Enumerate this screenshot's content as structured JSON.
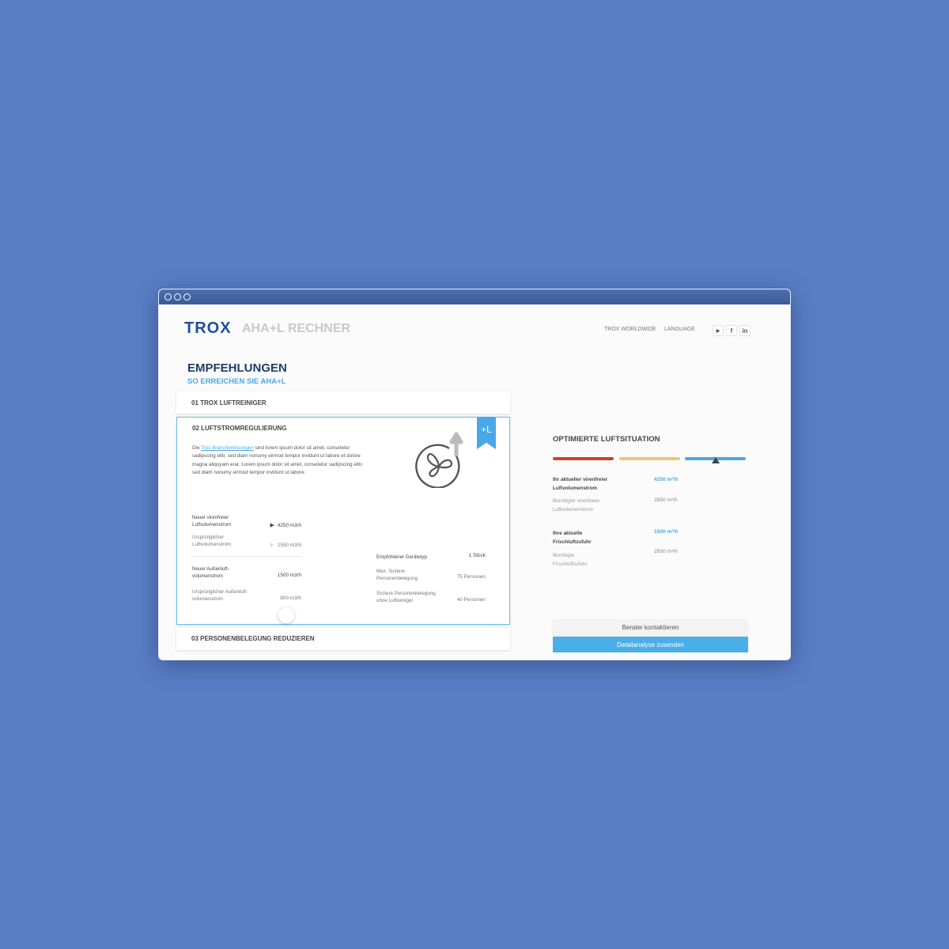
{
  "header": {
    "logo": "TROX",
    "app_title": "AHA+L RECHNER",
    "nav": [
      "TROX WORLDWIDE",
      "LANGUAGE"
    ],
    "social": [
      {
        "icon": "youtube-icon",
        "label": "▶"
      },
      {
        "icon": "facebook-icon",
        "label": "f"
      },
      {
        "icon": "linkedin-icon",
        "label": "in"
      }
    ]
  },
  "page": {
    "title": "EMPFEHLUNGEN",
    "subtitle": "SO ERREICHEN SIE AHA+L"
  },
  "cards": [
    {
      "title": "01 TROX LUFTREINIGER"
    },
    {
      "title": "02 LUFTSTROMREGULIERUNG",
      "badge": "+L",
      "text_prefix": "Die ",
      "link": "Trox Branchenlösungen",
      "text": " sind lorem ipsum dolor sit amet, consetetur sadipscing elitr, sed diam nonumy eirmod tempor invidunt ut labore et dolore magna aliquyam erat. Lorem ipsum dolor sit amet, consetetur sadipscing elitr, sed diam nonumy eirmod tempor invidunt ut labore.",
      "left": [
        {
          "label": "Neuer virenfreier Luftvolumenstrom",
          "value": "4250 m3/h"
        },
        {
          "label": "Ursprünglicher Luftvolumenstrom",
          "value": "1550 m3/h"
        },
        {
          "label": "Neuer Außenluft-volumenstrom",
          "value": "1500 m3/h"
        },
        {
          "label": "Ursprünglicher Außenluft-volumenstrom",
          "value": "800 m3/h"
        }
      ],
      "right": [
        {
          "label": "Empfohlener Gerätetyp",
          "value": "1 Stück"
        },
        {
          "label": "Max. Sichere Personenbelegung",
          "value": "75 Personen"
        },
        {
          "label": "Sichere Personenbelegung ohne Luftreiniger",
          "value": "40 Personen"
        }
      ]
    },
    {
      "title": "03 PERSONENBELEGUNG REDUZIEREN"
    }
  ],
  "summary": {
    "title": "OPTIMIERTE LUFTSITUATION",
    "colors": [
      "#d2402a",
      "#e8c978",
      "#4aa8e6"
    ],
    "level_segment": 3,
    "rows": [
      {
        "label": "Ihr aktueller virenfreier Luftvolumenstrom",
        "value": "4250 m³/h"
      },
      {
        "label": "Benötigter virenfreier Luftvolumenstrom",
        "value": "2850 m³/h"
      },
      {
        "label": "Ihre aktuelle Frischluftzufuhr",
        "value": "1500 m³/h"
      },
      {
        "label": "Benötigte Frischluftzufuhr",
        "value": "2850 m³/h"
      }
    ]
  },
  "buttons": {
    "contact": "Berater kontaktieren",
    "send": "Detailanalyse zusenden"
  }
}
